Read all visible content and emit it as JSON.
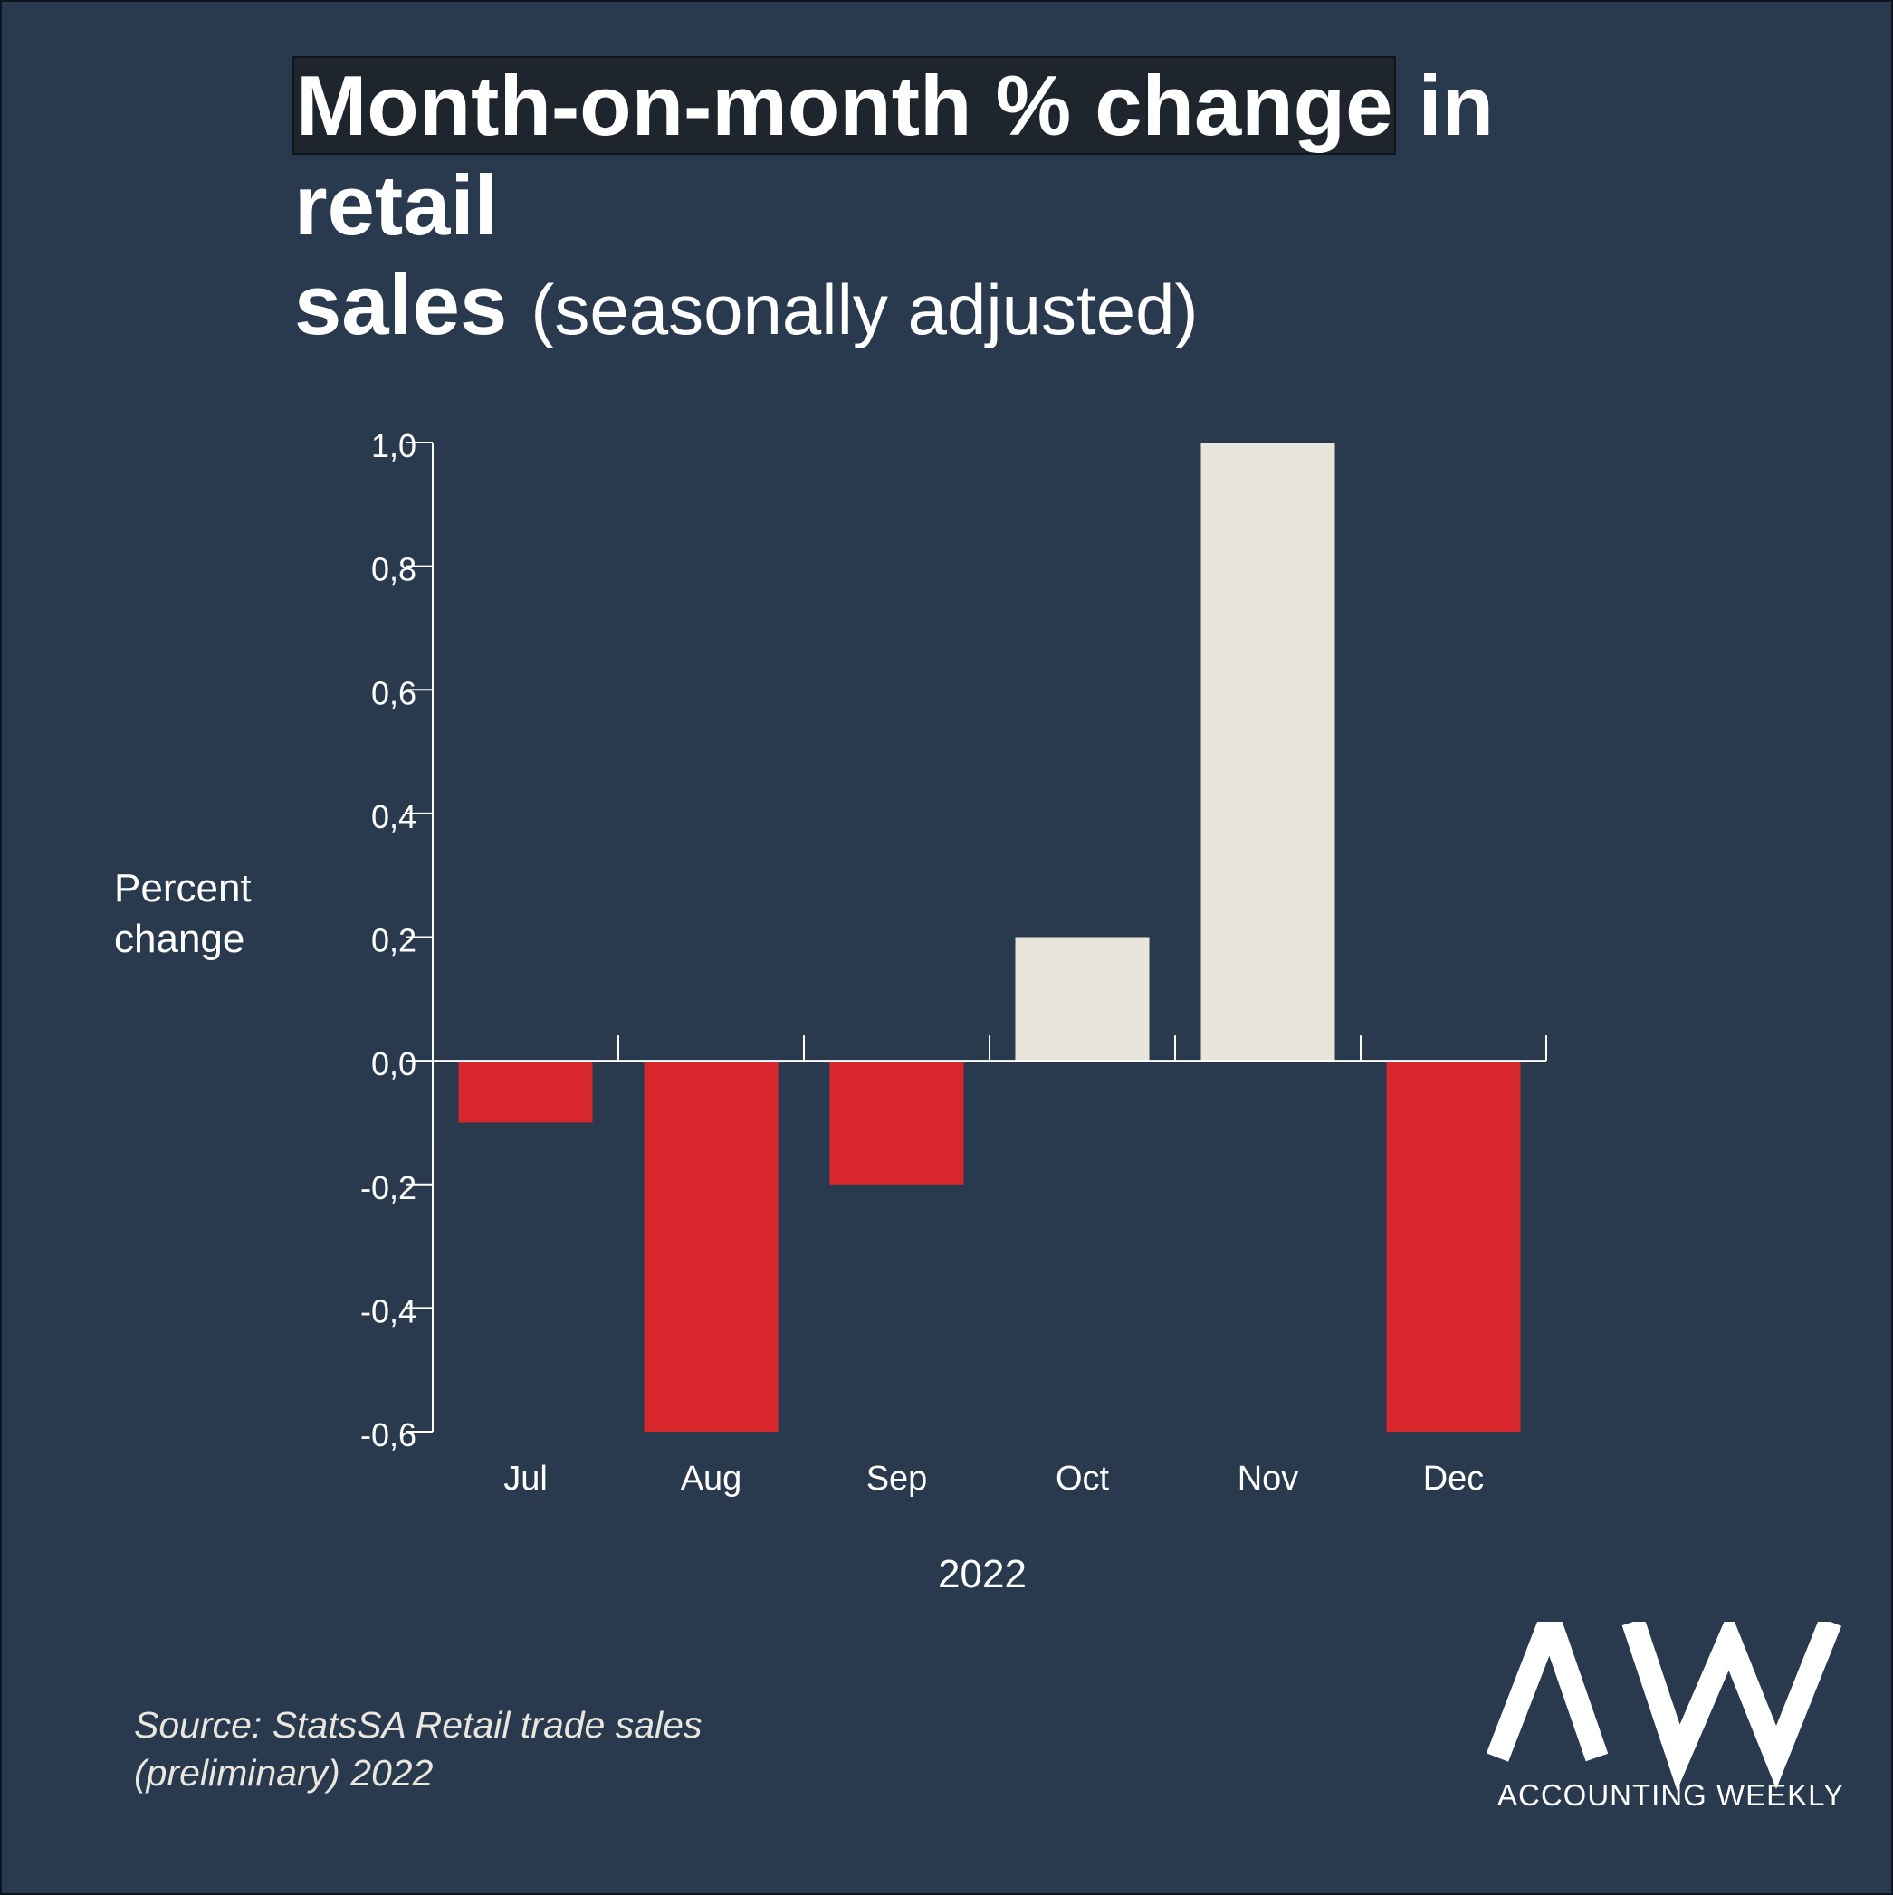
{
  "title": {
    "highlighted": "Month-on-month % change",
    "rest": " in retail",
    "line2_bold": "sales",
    "line2_light": "(seasonally adjusted)"
  },
  "source": {
    "line1": "Source: StatsSA Retail trade sales",
    "line2": "(preliminary) 2022"
  },
  "logo": {
    "text": "ACCOUNTING WEEKLY",
    "mark": "AW"
  },
  "colors": {
    "background": "#2a3a4e",
    "negative": "#d9272e",
    "positive": "#e9e5dc",
    "axis": "#ffffff"
  },
  "chart_data": {
    "type": "bar",
    "categories": [
      "Jul",
      "Aug",
      "Sep",
      "Oct",
      "Nov",
      "Dec"
    ],
    "values": [
      -0.1,
      -0.6,
      -0.2,
      0.2,
      1.0,
      -0.6
    ],
    "ylabel": "Percent change",
    "ylabel_lines": [
      "Percent",
      "change"
    ],
    "xlabel": "2022",
    "ylim": [
      -0.6,
      1.0
    ],
    "yticks": [
      -0.6,
      -0.4,
      -0.2,
      0.0,
      0.2,
      0.4,
      0.6,
      0.8,
      1.0
    ],
    "ytick_labels": [
      "-0,6",
      "-0,4",
      "-0,2",
      "0,0",
      "0,2",
      "0,4",
      "0,6",
      "0,8",
      "1,0"
    ],
    "grid": false,
    "legend": "none"
  }
}
